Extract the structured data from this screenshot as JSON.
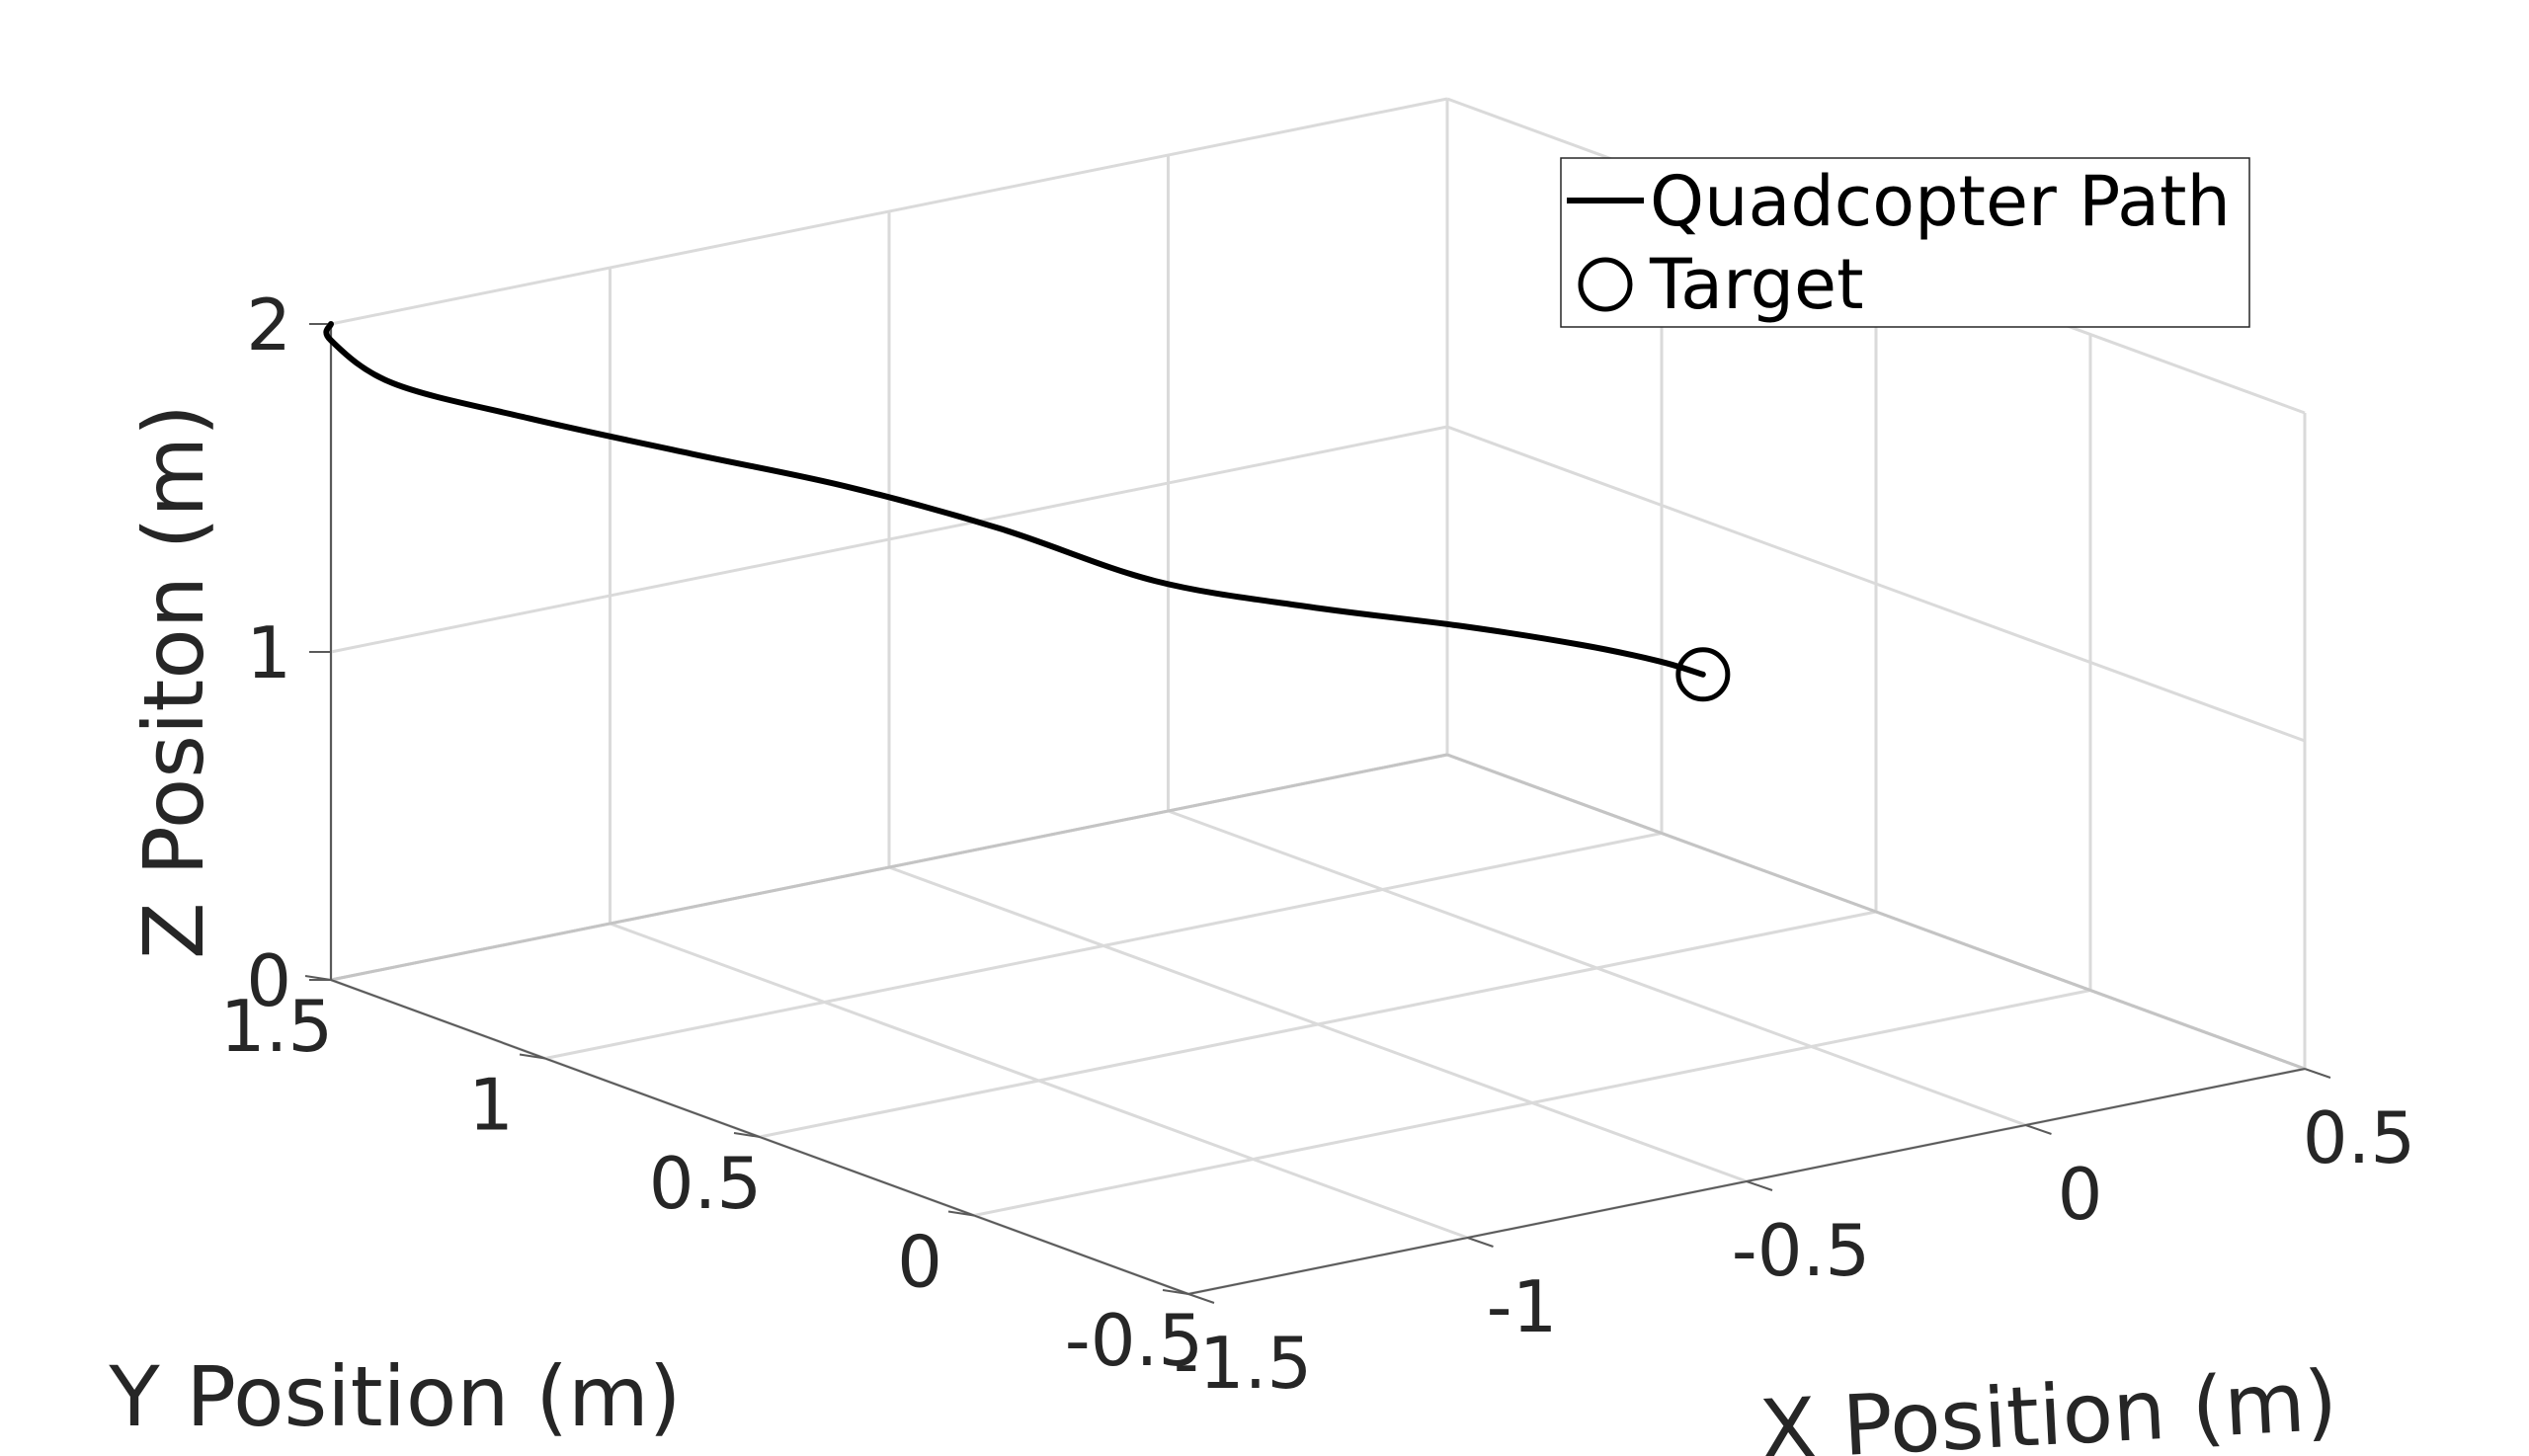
{
  "chart_data": {
    "type": "line3d",
    "title": "",
    "xlabel": "X Position (m)",
    "ylabel": "Y Position (m)",
    "zlabel": "Z Positon (m)",
    "xlim": [
      -1.5,
      0.5
    ],
    "ylim": [
      -0.5,
      1.5
    ],
    "zlim": [
      0,
      2
    ],
    "x_ticks": [
      -1.5,
      -1,
      -0.5,
      0,
      0.5
    ],
    "x_tick_labels": [
      "-1.5",
      "-1",
      "-0.5",
      "0",
      "0.5"
    ],
    "y_ticks": [
      -0.5,
      0,
      0.5,
      1,
      1.5
    ],
    "y_tick_labels": [
      "-0.5",
      "0",
      "0.5",
      "1",
      "1.5"
    ],
    "z_ticks": [
      0,
      1,
      2
    ],
    "z_tick_labels": [
      "0",
      "1",
      "2"
    ],
    "grid": true,
    "legend_position": "top-right",
    "series": [
      {
        "name": "Quadcopter Path",
        "color": "#000000",
        "points": [
          [
            -1.5,
            1.5,
            2.0
          ],
          [
            -1.5,
            1.5,
            1.95
          ],
          [
            -1.45,
            1.42,
            1.84
          ],
          [
            -1.3,
            1.3,
            1.74
          ],
          [
            -1.1,
            1.18,
            1.62
          ],
          [
            -0.9,
            1.08,
            1.5
          ],
          [
            -0.7,
            0.98,
            1.35
          ],
          [
            -0.5,
            0.88,
            1.17
          ],
          [
            -0.3,
            0.78,
            1.07
          ],
          [
            -0.1,
            0.68,
            0.99
          ],
          [
            0.05,
            0.6,
            0.92
          ],
          [
            0.15,
            0.55,
            0.86
          ],
          [
            0.19,
            0.5,
            0.83
          ]
        ]
      }
    ],
    "target": {
      "name": "Target",
      "marker": "circle",
      "color": "#000000",
      "point": [
        0.19,
        0.5,
        0.83
      ]
    }
  }
}
